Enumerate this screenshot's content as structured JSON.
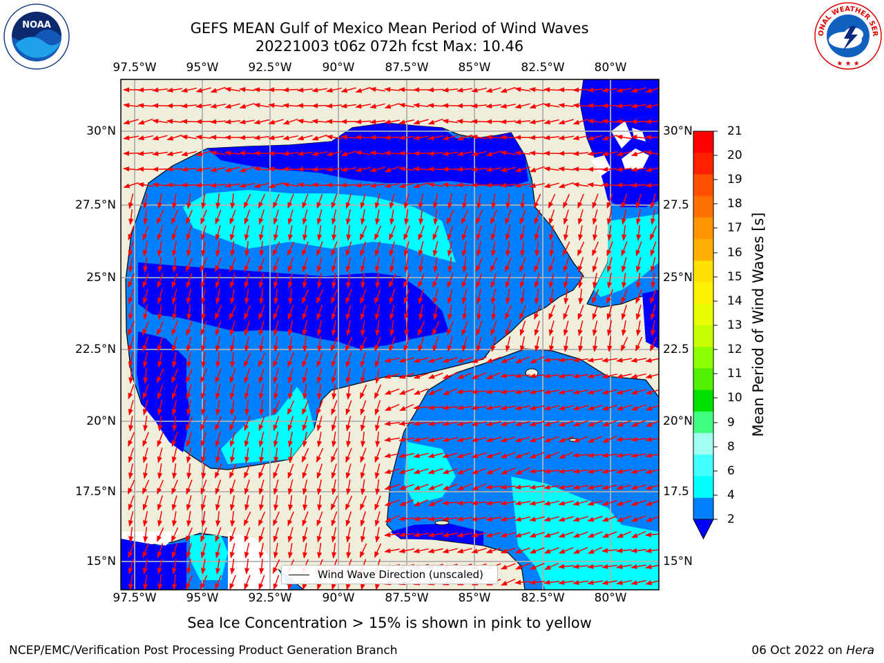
{
  "header": {
    "title_line1": "GEFS MEAN Gulf of Mexico Mean Period of Wind Waves",
    "title_line2": "20221003 t06z 072h fcst   Max: 10.46"
  },
  "axes": {
    "lon_labels": [
      "97.5°W",
      "95°W",
      "92.5°W",
      "90°W",
      "87.5°W",
      "85°W",
      "82.5°W",
      "80°W"
    ],
    "lat_labels": [
      "30°N",
      "27.5°N",
      "25°N",
      "22.5°N",
      "20°N",
      "17.5°N",
      "15°N"
    ],
    "lat_labels_right": [
      "30°N",
      "27.5",
      "25°N",
      "22.5",
      "20°N",
      "17.5",
      "15°N"
    ]
  },
  "legend": {
    "label": "Wind Wave Direction (unscaled)"
  },
  "colorbar": {
    "label": "Mean Period of Wind Waves [s]",
    "ticks": [
      "21",
      "20",
      "19",
      "18",
      "17",
      "16",
      "15",
      "14",
      "13",
      "12",
      "11",
      "10",
      "9",
      "8",
      "6",
      "4",
      "2"
    ],
    "colors": [
      "#ff0000",
      "#ff2000",
      "#ff5000",
      "#ff7000",
      "#ff9500",
      "#ffb000",
      "#ffe000",
      "#fff200",
      "#e8ff00",
      "#c8ff00",
      "#8cff00",
      "#50f000",
      "#00e000",
      "#40ff80",
      "#a0fff0",
      "#40ffff",
      "#00ffff",
      "#0080ff"
    ],
    "extend_color": "#0000ff"
  },
  "footer": {
    "note": "Sea Ice Concentration > 15% is shown in pink to yellow",
    "credit": "NCEP/EMC/Verification Post Processing Product Generation Branch",
    "date": "06 Oct 2022 on ",
    "host": "Hera"
  },
  "logos": {
    "left": "NOAA",
    "right": "NATIONAL WEATHER SERVICE"
  },
  "colors": {
    "land": "#efefdc",
    "period_2_4": "#0080ff",
    "period_4_6": "#00ffff",
    "period_below_2": "#0000ff",
    "arrow": "#ff0000",
    "grid": "#b0b0b0"
  }
}
